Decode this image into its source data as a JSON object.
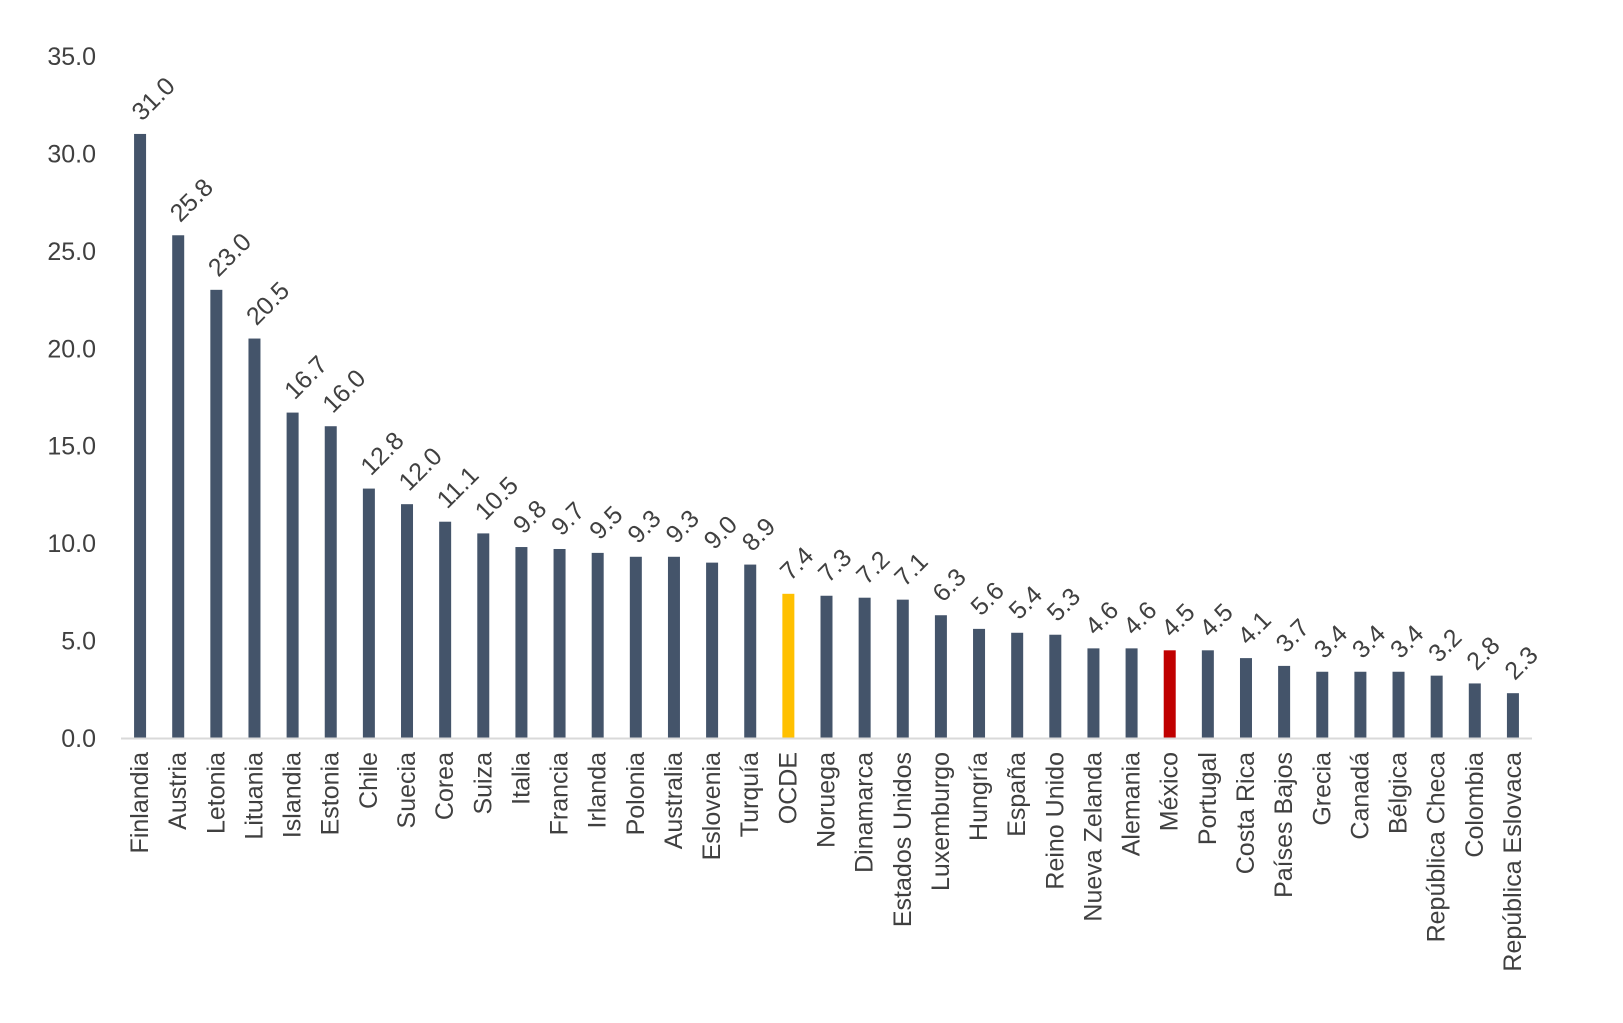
{
  "chart_data": {
    "type": "bar",
    "categories": [
      "Finlandia",
      "Austria",
      "Letonia",
      "Lituania",
      "Islandia",
      "Estonia",
      "Chile",
      "Suecia",
      "Corea",
      "Suiza",
      "Italia",
      "Francia",
      "Irlanda",
      "Polonia",
      "Australia",
      "Eslovenia",
      "Turquía",
      "OCDE",
      "Noruega",
      "Dinamarca",
      "Estados Unidos",
      "Luxemburgo",
      "Hungría",
      "España",
      "Reino Unido",
      "Nueva Zelanda",
      "Alemania",
      "México",
      "Portugal",
      "Costa Rica",
      "Países Bajos",
      "Grecia",
      "Canadá",
      "Bélgica",
      "República Checa",
      "Colombia",
      "República Eslovaca"
    ],
    "values": [
      31.0,
      25.8,
      23.0,
      20.5,
      16.7,
      16.0,
      12.8,
      12.0,
      11.1,
      10.5,
      9.8,
      9.7,
      9.5,
      9.3,
      9.3,
      9.0,
      8.9,
      7.4,
      7.3,
      7.2,
      7.1,
      6.3,
      5.6,
      5.4,
      5.3,
      4.6,
      4.6,
      4.5,
      4.5,
      4.1,
      3.7,
      3.4,
      3.4,
      3.4,
      3.2,
      2.8,
      2.3
    ],
    "value_labels": [
      "31.0",
      "25.8",
      "23.0",
      "20.5",
      "16.7",
      "16.0",
      "12.8",
      "12.0",
      "11.1",
      "10.5",
      "9.8",
      "9.7",
      "9.5",
      "9.3",
      "9.3",
      "9.0",
      "8.9",
      "7.4",
      "7.3",
      "7.2",
      "7.1",
      "6.3",
      "5.6",
      "5.4",
      "5.3",
      "4.6",
      "4.6",
      "4.5",
      "4.5",
      "4.1",
      "3.7",
      "3.4",
      "3.4",
      "3.4",
      "3.2",
      "2.8",
      "2.3"
    ],
    "yticks": [
      "0.0",
      "5.0",
      "10.0",
      "15.0",
      "20.0",
      "25.0",
      "30.0",
      "35.0"
    ],
    "ylim": [
      0,
      35
    ],
    "grid": false,
    "legend": "none",
    "title": "",
    "xlabel": "",
    "ylabel": "",
    "colors": {
      "default": "#44546A",
      "highlights": {
        "OCDE": "#FFC000",
        "México": "#C00000"
      },
      "axis": "#D9D9D9",
      "text": "#404040"
    }
  }
}
